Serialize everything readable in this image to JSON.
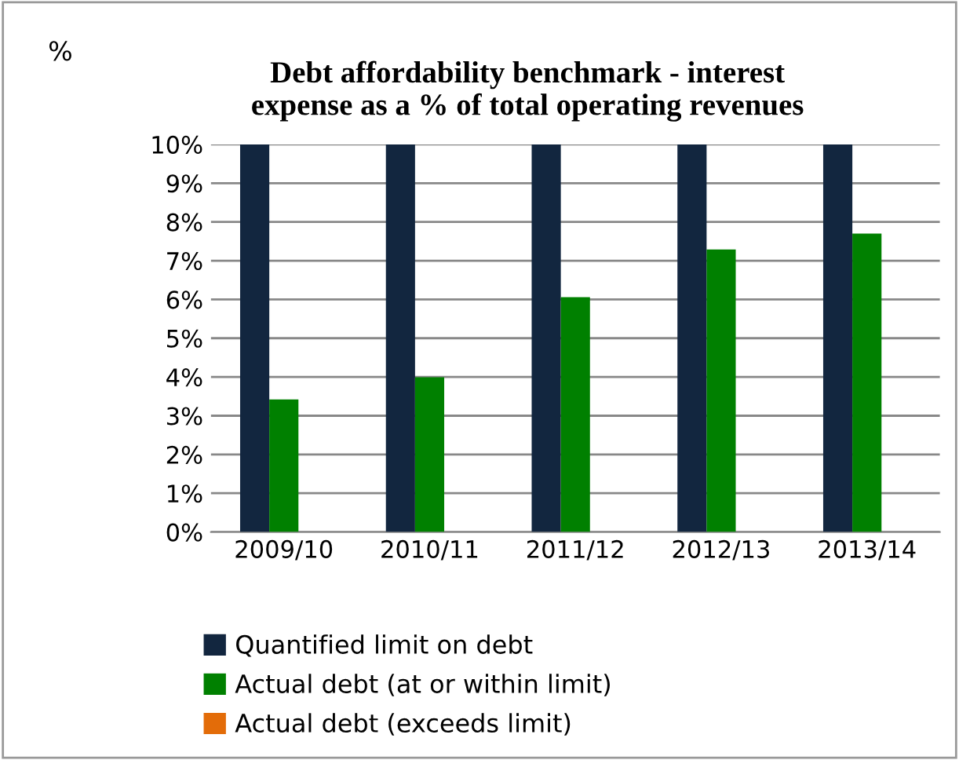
{
  "chart_data": {
    "type": "bar",
    "title": "Debt affordability benchmark - interest\nexpense as a % of total operating revenues",
    "ylabel": "%",
    "categories": [
      "2009/10",
      "2010/11",
      "2011/12",
      "2012/13",
      "2013/14"
    ],
    "series": [
      {
        "name": "Quantified limit on debt",
        "color": "#12263f",
        "values": [
          10,
          10,
          10,
          10,
          10
        ]
      },
      {
        "name": "Actual debt (at or within limit)",
        "color": "#008000",
        "values": [
          3.42,
          3.99,
          6.06,
          7.29,
          7.7
        ]
      },
      {
        "name": "Actual debt (exceeds limit)",
        "color": "#e36c09",
        "values": [
          null,
          null,
          null,
          null,
          null
        ]
      }
    ],
    "ylim": [
      0,
      10
    ],
    "yticks": [
      {
        "value": 0,
        "label": "0%"
      },
      {
        "value": 1,
        "label": "1%"
      },
      {
        "value": 2,
        "label": "2%"
      },
      {
        "value": 3,
        "label": "3%"
      },
      {
        "value": 4,
        "label": "4%"
      },
      {
        "value": 5,
        "label": "5%"
      },
      {
        "value": 6,
        "label": "6%"
      },
      {
        "value": 7,
        "label": "7%"
      },
      {
        "value": 8,
        "label": "8%"
      },
      {
        "value": 9,
        "label": "9%"
      },
      {
        "value": 10,
        "label": "10%"
      }
    ],
    "grid": "y",
    "legend": "bottom"
  }
}
